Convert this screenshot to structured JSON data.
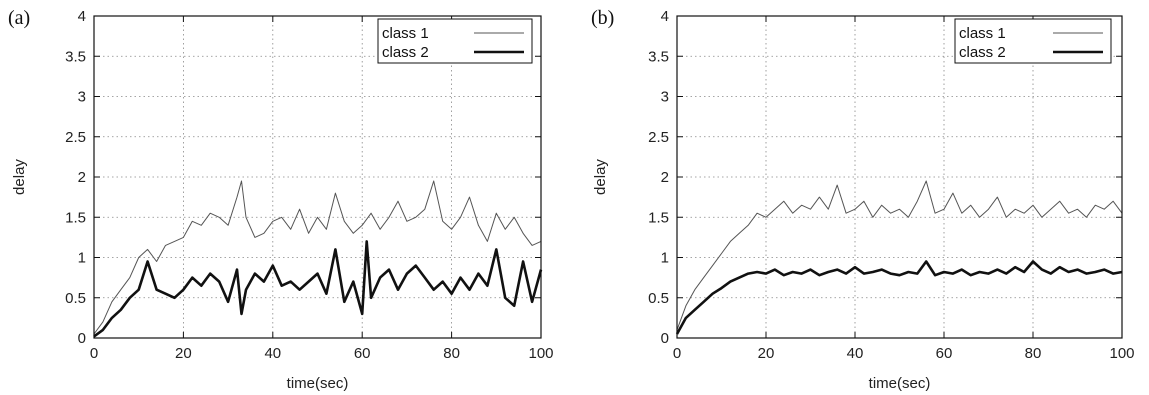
{
  "chart_data": [
    {
      "type": "line",
      "panel_label": "(a)",
      "xlabel": "time(sec)",
      "ylabel": "delay",
      "xlim": [
        0,
        100
      ],
      "ylim": [
        0,
        4
      ],
      "xticks": [
        "0",
        "20",
        "40",
        "60",
        "80",
        "100"
      ],
      "yticks": [
        "0",
        "0.5",
        "1",
        "1.5",
        "2",
        "2.5",
        "3",
        "3.5",
        "4"
      ],
      "grid": true,
      "legend_position": "top-right",
      "series": [
        {
          "name": "class 1",
          "style": "thin",
          "x": [
            0,
            2,
            4,
            6,
            8,
            10,
            12,
            14,
            16,
            18,
            20,
            22,
            24,
            26,
            28,
            30,
            32,
            33,
            34,
            36,
            38,
            40,
            42,
            44,
            46,
            48,
            50,
            52,
            54,
            56,
            58,
            60,
            62,
            64,
            66,
            68,
            70,
            72,
            74,
            76,
            78,
            80,
            82,
            84,
            86,
            88,
            90,
            92,
            94,
            96,
            98,
            100
          ],
          "values": [
            0.05,
            0.2,
            0.45,
            0.6,
            0.75,
            1.0,
            1.1,
            0.95,
            1.15,
            1.2,
            1.25,
            1.45,
            1.4,
            1.55,
            1.5,
            1.4,
            1.75,
            1.95,
            1.5,
            1.25,
            1.3,
            1.45,
            1.5,
            1.35,
            1.6,
            1.3,
            1.5,
            1.35,
            1.8,
            1.45,
            1.3,
            1.4,
            1.55,
            1.35,
            1.5,
            1.7,
            1.45,
            1.5,
            1.6,
            1.95,
            1.45,
            1.35,
            1.5,
            1.75,
            1.4,
            1.2,
            1.55,
            1.35,
            1.5,
            1.3,
            1.15,
            1.2
          ]
        },
        {
          "name": "class 2",
          "style": "thick",
          "x": [
            0,
            2,
            4,
            6,
            8,
            10,
            12,
            14,
            16,
            18,
            20,
            22,
            24,
            26,
            28,
            30,
            32,
            33,
            34,
            36,
            38,
            40,
            42,
            44,
            46,
            48,
            50,
            52,
            54,
            56,
            58,
            60,
            61,
            62,
            64,
            66,
            68,
            70,
            72,
            74,
            76,
            78,
            80,
            82,
            84,
            86,
            88,
            90,
            92,
            94,
            96,
            98,
            100
          ],
          "values": [
            0.02,
            0.1,
            0.25,
            0.35,
            0.5,
            0.6,
            0.95,
            0.6,
            0.55,
            0.5,
            0.6,
            0.75,
            0.65,
            0.8,
            0.7,
            0.45,
            0.85,
            0.3,
            0.6,
            0.8,
            0.7,
            0.9,
            0.65,
            0.7,
            0.6,
            0.7,
            0.8,
            0.55,
            1.1,
            0.45,
            0.7,
            0.3,
            1.2,
            0.5,
            0.75,
            0.85,
            0.6,
            0.8,
            0.9,
            0.75,
            0.6,
            0.7,
            0.55,
            0.75,
            0.6,
            0.8,
            0.65,
            1.1,
            0.5,
            0.4,
            0.95,
            0.45,
            0.85
          ]
        }
      ]
    },
    {
      "type": "line",
      "panel_label": "(b)",
      "xlabel": "time(sec)",
      "ylabel": "delay",
      "xlim": [
        0,
        100
      ],
      "ylim": [
        0,
        4
      ],
      "xticks": [
        "0",
        "20",
        "40",
        "60",
        "80",
        "100"
      ],
      "yticks": [
        "0",
        "0.5",
        "1",
        "1.5",
        "2",
        "2.5",
        "3",
        "3.5",
        "4"
      ],
      "grid": true,
      "legend_position": "top-right",
      "series": [
        {
          "name": "class 1",
          "style": "thin",
          "x": [
            0,
            2,
            4,
            6,
            8,
            10,
            12,
            14,
            16,
            18,
            20,
            22,
            24,
            26,
            28,
            30,
            32,
            34,
            36,
            38,
            40,
            42,
            44,
            46,
            48,
            50,
            52,
            54,
            56,
            58,
            60,
            62,
            64,
            66,
            68,
            70,
            72,
            74,
            76,
            78,
            80,
            82,
            84,
            86,
            88,
            90,
            92,
            94,
            96,
            98,
            100
          ],
          "values": [
            0.1,
            0.4,
            0.6,
            0.75,
            0.9,
            1.05,
            1.2,
            1.3,
            1.4,
            1.55,
            1.5,
            1.6,
            1.7,
            1.55,
            1.65,
            1.6,
            1.75,
            1.6,
            1.9,
            1.55,
            1.6,
            1.7,
            1.5,
            1.65,
            1.55,
            1.6,
            1.5,
            1.7,
            1.95,
            1.55,
            1.6,
            1.8,
            1.55,
            1.65,
            1.5,
            1.6,
            1.75,
            1.5,
            1.6,
            1.55,
            1.65,
            1.5,
            1.6,
            1.7,
            1.55,
            1.6,
            1.5,
            1.65,
            1.6,
            1.7,
            1.55
          ]
        },
        {
          "name": "class 2",
          "style": "thick",
          "x": [
            0,
            2,
            4,
            6,
            8,
            10,
            12,
            14,
            16,
            18,
            20,
            22,
            24,
            26,
            28,
            30,
            32,
            34,
            36,
            38,
            40,
            42,
            44,
            46,
            48,
            50,
            52,
            54,
            56,
            58,
            60,
            62,
            64,
            66,
            68,
            70,
            72,
            74,
            76,
            78,
            80,
            82,
            84,
            86,
            88,
            90,
            92,
            94,
            96,
            98,
            100
          ],
          "values": [
            0.05,
            0.25,
            0.35,
            0.45,
            0.55,
            0.62,
            0.7,
            0.75,
            0.8,
            0.82,
            0.8,
            0.85,
            0.78,
            0.82,
            0.8,
            0.85,
            0.78,
            0.82,
            0.85,
            0.8,
            0.88,
            0.8,
            0.82,
            0.85,
            0.8,
            0.78,
            0.82,
            0.8,
            0.95,
            0.78,
            0.82,
            0.8,
            0.85,
            0.78,
            0.82,
            0.8,
            0.85,
            0.8,
            0.88,
            0.82,
            0.95,
            0.85,
            0.8,
            0.88,
            0.82,
            0.85,
            0.8,
            0.82,
            0.85,
            0.8,
            0.82
          ]
        }
      ]
    }
  ]
}
